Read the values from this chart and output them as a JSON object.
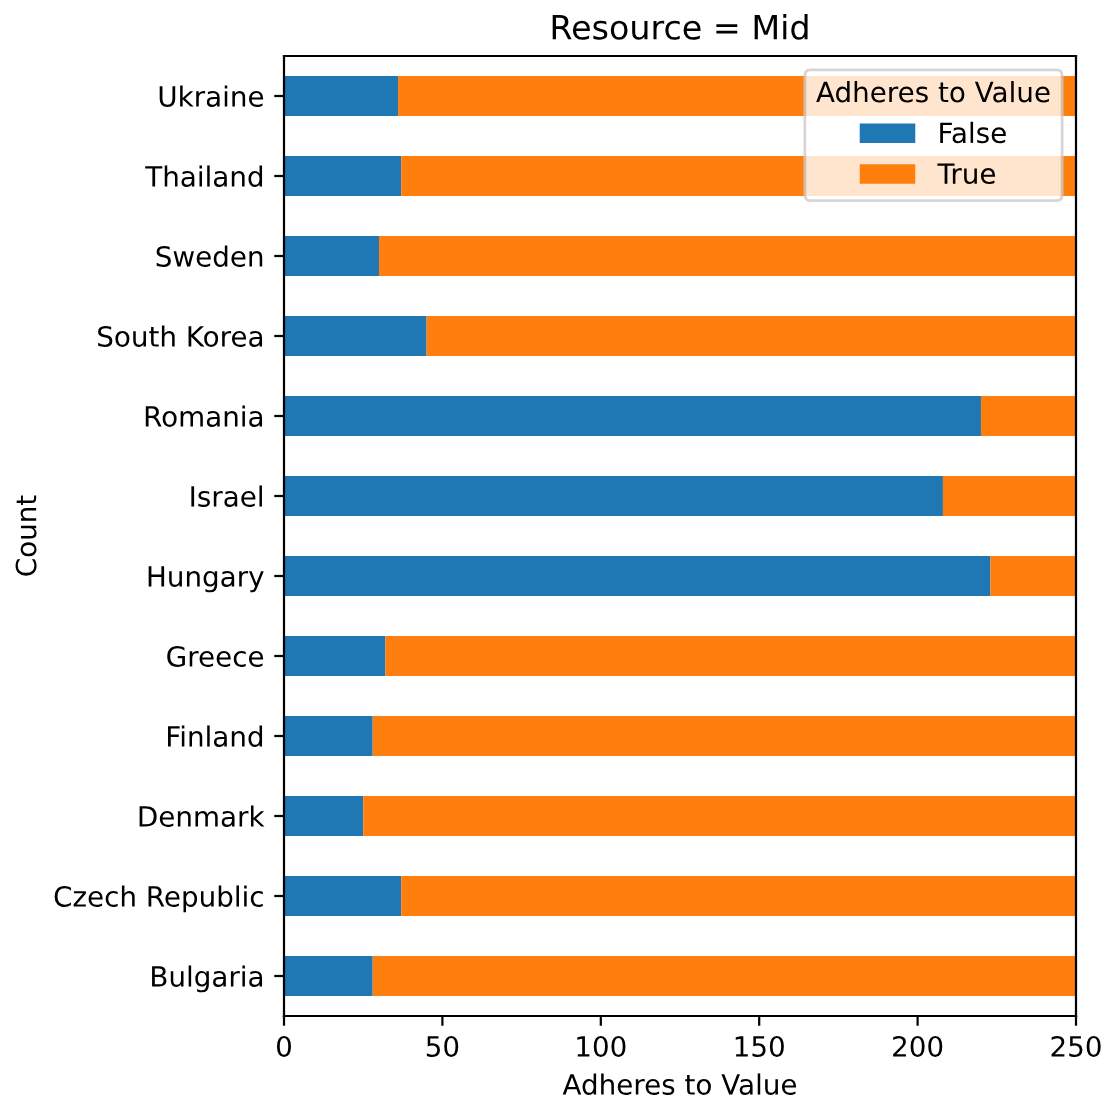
{
  "chart_data": {
    "type": "bar",
    "orientation": "horizontal",
    "stacked": true,
    "title": "Resource = Mid",
    "xlabel": "Adheres to Value",
    "ylabel": "Count",
    "legend_title": "Adheres to Value",
    "legend": "top right",
    "categories": [
      "Ukraine",
      "Thailand",
      "Sweden",
      "South Korea",
      "Romania",
      "Israel",
      "Hungary",
      "Greece",
      "Finland",
      "Denmark",
      "Czech Republic",
      "Bulgaria"
    ],
    "series": [
      {
        "name": "False",
        "color": "#1f77b4",
        "values": [
          36,
          37,
          30,
          45,
          220,
          208,
          223,
          32,
          28,
          25,
          37,
          28
        ]
      },
      {
        "name": "True",
        "color": "#ff7f0e",
        "values": [
          214,
          213,
          220,
          205,
          30,
          42,
          27,
          218,
          222,
          225,
          213,
          222
        ]
      }
    ],
    "xlim": [
      0,
      250
    ],
    "xticks": [
      0,
      50,
      100,
      150,
      200,
      250
    ]
  }
}
